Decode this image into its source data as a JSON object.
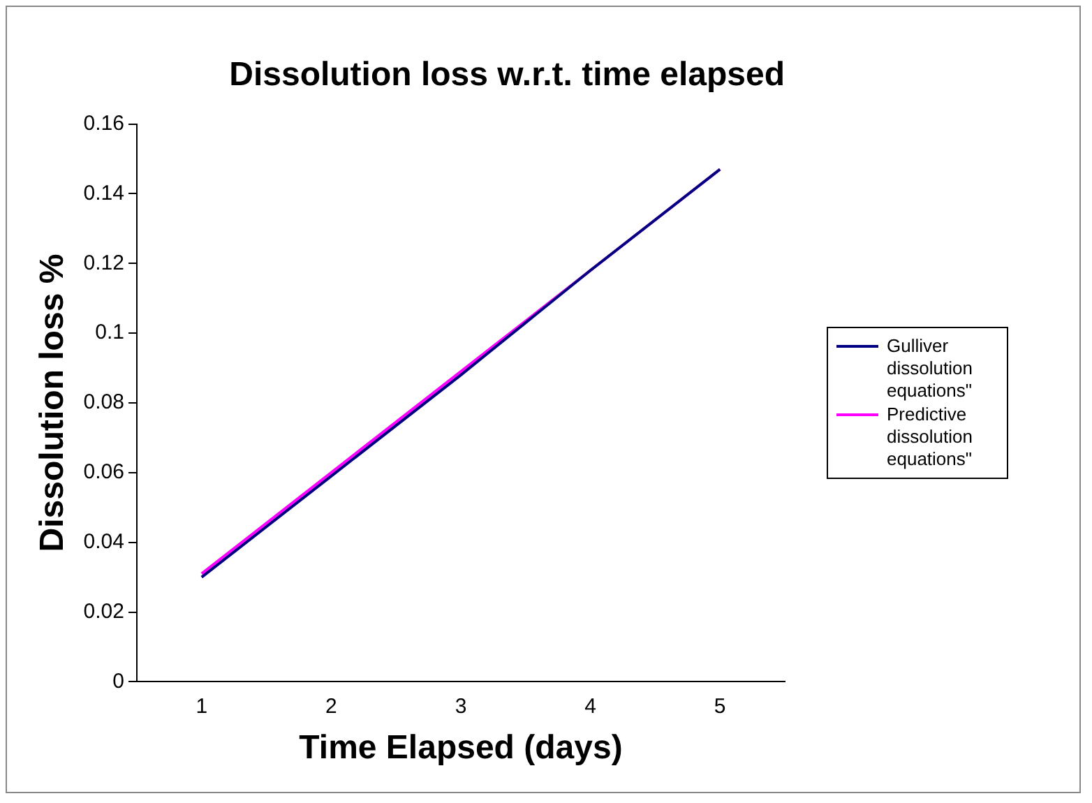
{
  "chart_data": {
    "type": "line",
    "title": "Dissolution loss w.r.t. time elapsed",
    "xlabel": "Time Elapsed (days)",
    "ylabel": "Dissolution loss %",
    "categories": [
      "1",
      "2",
      "3",
      "4",
      "5"
    ],
    "series": [
      {
        "name": "Gulliver dissolution equations\"",
        "color": "#000080",
        "values": [
          0.03,
          0.059,
          0.088,
          0.118,
          0.147
        ]
      },
      {
        "name": "Predictive dissolution equations\"",
        "color": "#ff00ff",
        "values": [
          0.031,
          0.06,
          0.089,
          0.118,
          0.147
        ]
      }
    ],
    "ylim": [
      0,
      0.16
    ],
    "yticks": [
      0,
      0.02,
      0.04,
      0.06,
      0.08,
      0.1,
      0.12,
      0.14,
      0.16
    ],
    "grid": false,
    "legend": "right",
    "marker": "none",
    "line_style": "solid"
  }
}
